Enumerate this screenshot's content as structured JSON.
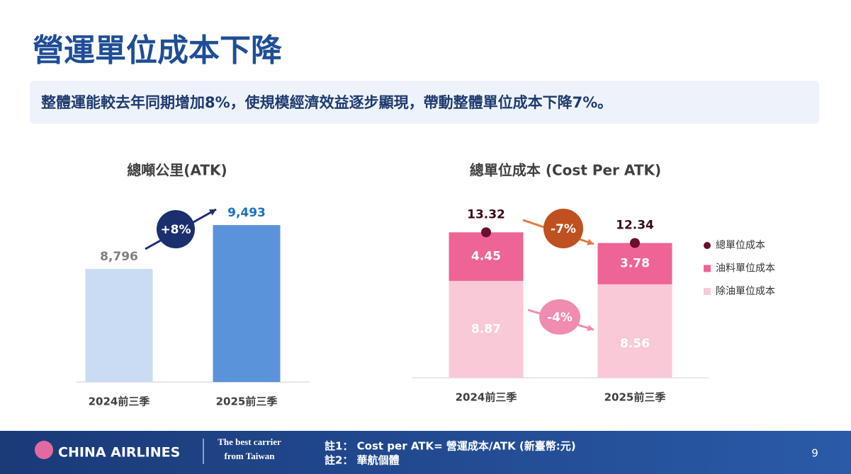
{
  "title": "營運單位成本下降",
  "subtitle": "整體運能較去年同期增加8%，使規模經濟效益逐步顯現，帶動整體單位成本下降7%。",
  "chart_data": [
    {
      "type": "bar",
      "title": "總噸公里(ATK)",
      "categories": [
        "2024前三季",
        "2025前三季"
      ],
      "values": [
        8796,
        9493
      ],
      "value_labels": [
        "8,796",
        "9,493"
      ],
      "colors": [
        "#c9dcf3",
        "#5b93db"
      ],
      "ylim": [
        7000,
        10000
      ],
      "annotation": "+8%"
    },
    {
      "type": "stacked_bar",
      "title": "總單位成本 (Cost Per ATK)",
      "categories": [
        "2024前三季",
        "2025前三季"
      ],
      "series": [
        {
          "name": "總單位成本",
          "color": "#6b0f2b",
          "values": [
            13.32,
            12.34
          ],
          "kind": "dot"
        },
        {
          "name": "油料單位成本",
          "color": "#ee6496",
          "values": [
            4.45,
            3.78
          ],
          "kind": "bar"
        },
        {
          "name": "除油單位成本",
          "color": "#f9c9d8",
          "values": [
            8.87,
            8.56
          ],
          "kind": "bar"
        }
      ],
      "ylim": [
        0,
        16
      ],
      "annotations": [
        "-7%",
        "-4%"
      ]
    }
  ],
  "footer": {
    "logo": "CHINA AIRLINES",
    "slogan": [
      "The best carrier",
      "from Taiwan"
    ],
    "notes": [
      "註1： Cost per ATK= 營運成本/ATK (新臺幣:元)",
      "註2： 華航個體"
    ],
    "page": "9"
  }
}
